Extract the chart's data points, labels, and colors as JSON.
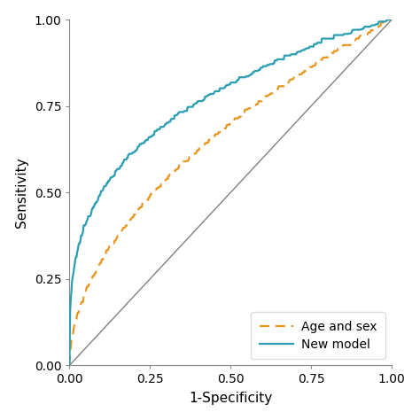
{
  "xlabel": "1-Specificity",
  "ylabel": "Sensitivity",
  "xlim": [
    0.0,
    1.0
  ],
  "ylim": [
    0.0,
    1.0
  ],
  "xticks": [
    0.0,
    0.25,
    0.5,
    0.75,
    1.0
  ],
  "yticks": [
    0.0,
    0.25,
    0.5,
    0.75,
    1.0
  ],
  "diagonal_color": "#808080",
  "new_model_color": "#2B9EB3",
  "age_sex_color": "#E8961E",
  "new_model_label": "New model",
  "age_sex_label": "Age and sex",
  "legend_loc": "lower right",
  "font_size": 10,
  "axis_label_fontsize": 11,
  "tick_fontsize": 10,
  "spine_color": "#555555",
  "background_color": "#ffffff",
  "new_model_alpha": 0.3,
  "age_sex_alpha": 0.52,
  "noise_scale_new": 0.004,
  "noise_scale_age": 0.004
}
